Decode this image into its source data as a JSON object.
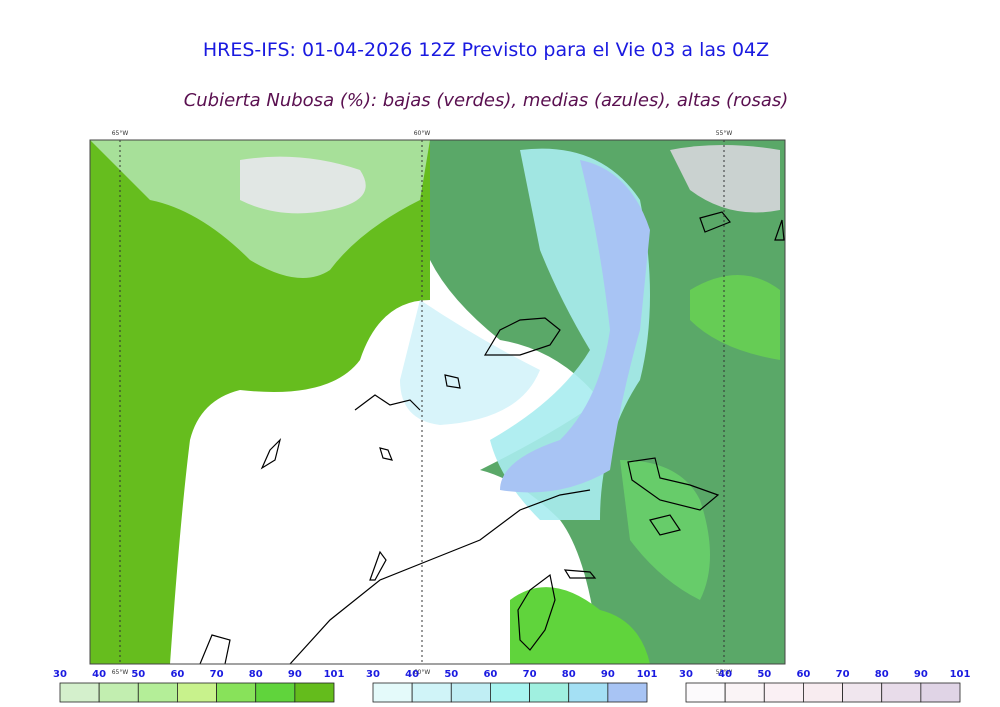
{
  "header": {
    "title": "HRES-IFS: 01-04-2026 12Z Previsto para el Vie 03 a las 04Z",
    "subtitle": "Cubierta Nubosa (%): bajas (verdes), medias (azules), altas (rosas)"
  },
  "map": {
    "longitude_labels_top": [
      "65°W",
      "60°W",
      "55°W"
    ],
    "longitude_labels_bottom": [
      "65°W",
      "60°W",
      "55°W"
    ]
  },
  "colorbars": [
    {
      "ticks": [
        30,
        40,
        50,
        60,
        70,
        80,
        90,
        101
      ],
      "colors": [
        "#d4f0cc",
        "#c2eeb0",
        "#b4ee98",
        "#c8f28c",
        "#88e25a",
        "#60d43c",
        "#64bc1c"
      ]
    },
    {
      "ticks": [
        30,
        40,
        50,
        60,
        70,
        80,
        90,
        101
      ],
      "colors": [
        "#e4fafa",
        "#d0f4f8",
        "#c0eef4",
        "#a8f4f0",
        "#a0f0e0",
        "#a4e0f4",
        "#a8c4f4"
      ]
    },
    {
      "ticks": [
        30,
        40,
        50,
        60,
        70,
        80,
        90,
        101
      ],
      "colors": [
        "#fcfafc",
        "#faf4f6",
        "#faf0f4",
        "#f8ecf0",
        "#f0e6ee",
        "#e8dcea",
        "#e0d4e6"
      ]
    }
  ]
}
